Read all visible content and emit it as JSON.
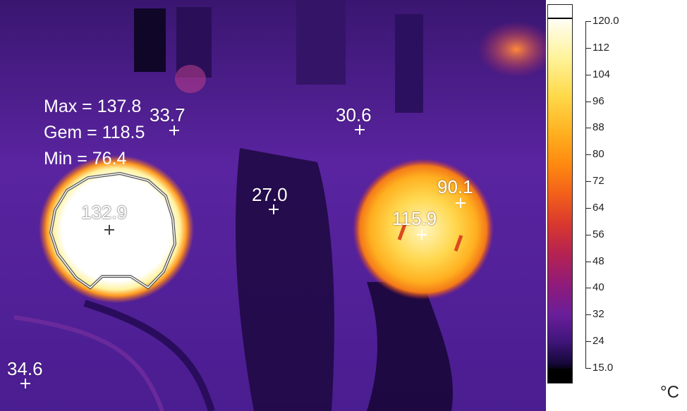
{
  "stats": {
    "max": "Max = 137.8",
    "avg": "Gem = 118.5",
    "min": "Min = 76.4"
  },
  "spots": [
    {
      "id": "s1",
      "value": "33.7"
    },
    {
      "id": "s2",
      "value": "30.6"
    },
    {
      "id": "s3",
      "value": "27.0"
    },
    {
      "id": "s4",
      "value": "132.9"
    },
    {
      "id": "s5",
      "value": "90.1"
    },
    {
      "id": "s6",
      "value": "115.9"
    },
    {
      "id": "s7",
      "value": "34.6"
    }
  ],
  "scale": {
    "ticks": [
      "120.0",
      "112",
      "104",
      "96",
      "88",
      "80",
      "72",
      "64",
      "56",
      "48",
      "40",
      "32",
      "24",
      "15.0"
    ],
    "unit": "°C"
  },
  "colors": {
    "background": "#4a1e8c",
    "hot": "#ffffff",
    "warm": "#ffd94a"
  }
}
